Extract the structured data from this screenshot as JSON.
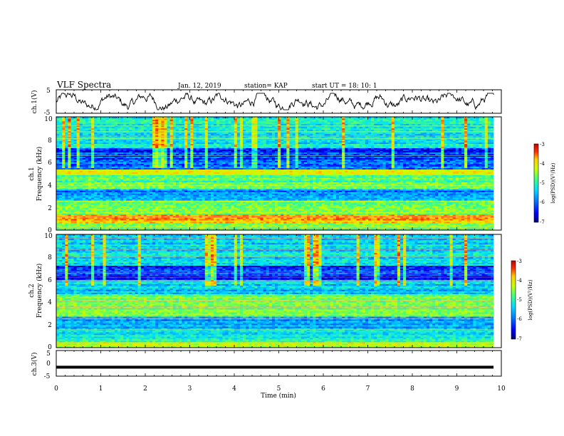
{
  "header": {
    "title": "VLF Spectra",
    "date": "Jan. 12, 2019",
    "station": "station= KAP",
    "start": "start UT = 18: 10: 1"
  },
  "colors": {
    "trace": "#000000",
    "colormap": [
      "#00007a",
      "#0000ff",
      "#0080ff",
      "#00e0ff",
      "#40ff80",
      "#c8ff00",
      "#ffd000",
      "#ff3000",
      "#c00000"
    ]
  },
  "chart_data": [
    {
      "type": "line",
      "name": "ch1-waveform",
      "ylabel": "ch.1(V)",
      "ylim": [
        -5,
        5
      ],
      "yticks": [
        "5",
        "-5"
      ],
      "x_range": [
        0,
        9.83
      ],
      "trend": "noisy waveform fluctuating roughly between -3 and 3 V"
    },
    {
      "type": "heatmap",
      "name": "ch1-spectrogram",
      "ylabel_top": "ch.1",
      "ylabel": "Frequency (kHz)",
      "ylim": [
        0,
        10
      ],
      "yticks": [
        "0",
        "2",
        "4",
        "6",
        "8",
        "10"
      ],
      "colorbar": {
        "label": "log(PSD)(V²/Hz)",
        "range": [
          -7,
          -3
        ],
        "ticks": [
          "-3",
          "-4",
          "-5",
          "-6",
          "-7"
        ]
      },
      "bands": [
        {
          "kHz": [
            0,
            0.6
          ],
          "level": -4.8
        },
        {
          "kHz": [
            0.6,
            1.4
          ],
          "level": -3.9
        },
        {
          "kHz": [
            1.4,
            2.6
          ],
          "level": -4.8
        },
        {
          "kHz": [
            2.6,
            3.6
          ],
          "level": -5.9
        },
        {
          "kHz": [
            3.6,
            4.9
          ],
          "level": -5.0
        },
        {
          "kHz": [
            4.9,
            5.4
          ],
          "level": -4.2
        },
        {
          "kHz": [
            5.4,
            6.2
          ],
          "level": -6.1
        },
        {
          "kHz": [
            6.2,
            7.2
          ],
          "level": -6.3
        },
        {
          "kHz": [
            7.2,
            10
          ],
          "level": -5.4
        }
      ]
    },
    {
      "type": "heatmap",
      "name": "ch2-spectrogram",
      "ylabel_top": "ch.2",
      "ylabel": "Frequency (kHz)",
      "ylim": [
        0,
        10
      ],
      "yticks": [
        "0",
        "2",
        "4",
        "6",
        "8",
        "10"
      ],
      "colorbar": {
        "label": "log(PSD)(V²/Hz)",
        "range": [
          -7,
          -3
        ],
        "ticks": [
          "-3",
          "-4",
          "-5",
          "-6",
          "-7"
        ]
      },
      "bands": [
        {
          "kHz": [
            0,
            0.5
          ],
          "level": -4.5
        },
        {
          "kHz": [
            0.5,
            1.8
          ],
          "level": -5.4
        },
        {
          "kHz": [
            1.8,
            2.8
          ],
          "level": -5.8
        },
        {
          "kHz": [
            2.8,
            3.5
          ],
          "level": -4.7
        },
        {
          "kHz": [
            3.5,
            4.8
          ],
          "level": -4.8
        },
        {
          "kHz": [
            4.8,
            6.0
          ],
          "level": -5.6
        },
        {
          "kHz": [
            6.0,
            7.2
          ],
          "level": -6.4
        },
        {
          "kHz": [
            7.2,
            10
          ],
          "level": -5.5
        }
      ]
    },
    {
      "type": "line",
      "name": "ch3-waveform",
      "ylabel": "ch.3(V)",
      "ylim": [
        -5,
        5
      ],
      "yticks": [
        "5",
        "0",
        "-5"
      ],
      "x_range": [
        0,
        9.83
      ],
      "values_summary": "flat trace at about -1.5 V"
    }
  ],
  "xaxis": {
    "label": "Time (min)",
    "ticks": [
      "0",
      "1",
      "2",
      "3",
      "4",
      "5",
      "6",
      "7",
      "8",
      "9",
      "10"
    ],
    "range": [
      0,
      10
    ]
  }
}
